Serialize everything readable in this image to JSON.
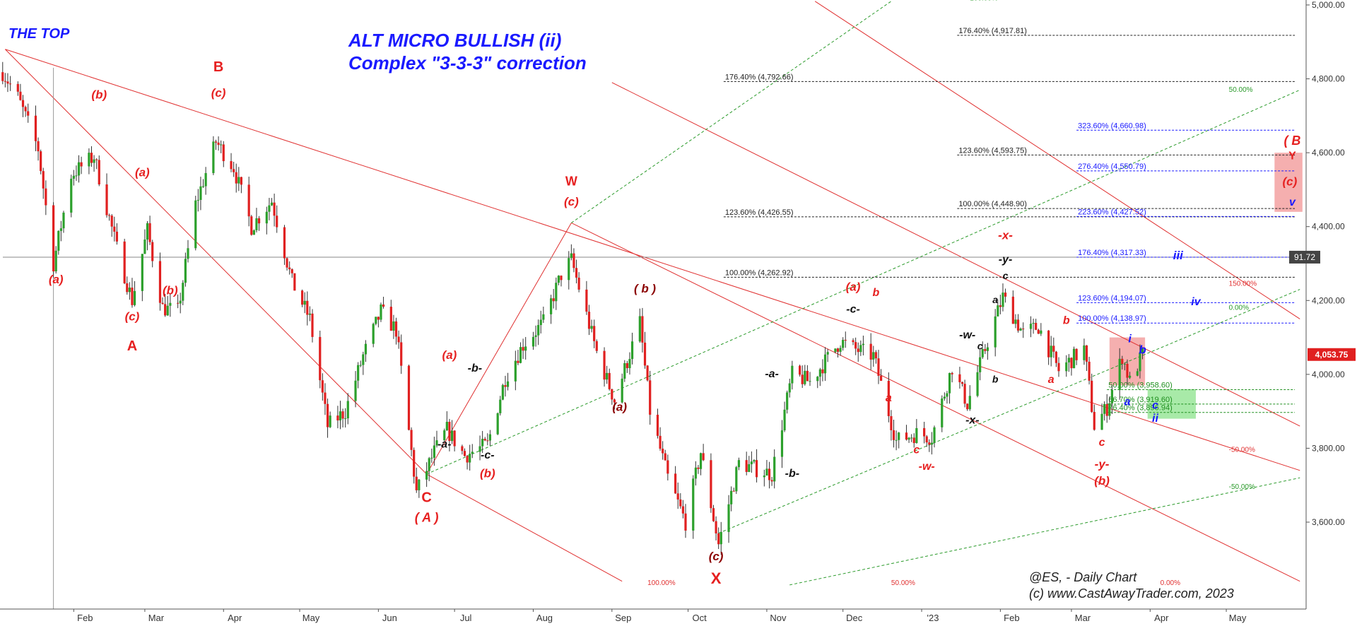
{
  "header": {
    "the_top": "THE TOP",
    "title_line1": "ALT MICRO BULLISH (ii)",
    "title_line2": "Complex \"3-3-3\" correction"
  },
  "watermark": {
    "line1": "@ES, - Daily Chart",
    "line2": "(c) www.CastAwayTrader.com, 2023"
  },
  "colors": {
    "up": "#2ca02c",
    "down": "#e02020",
    "wave_red": "#e62020",
    "wave_dark": "#8b0000",
    "wave_black": "#111111",
    "wave_blue": "#1a1aff",
    "channel_red": "#e03030",
    "channel_green": "#2a9a2a",
    "fib_black": "#222222",
    "fib_blue": "#1a1aff",
    "fib_green": "#1f8f1f",
    "price_tag_bg": "#e02020",
    "cross_tag_bg": "#444444"
  },
  "chart_data": {
    "type": "candlestick",
    "instrument": "@ES",
    "timeframe": "Daily Chart",
    "ylim": [
      3420,
      5010
    ],
    "y_ticks": [
      3600,
      3800,
      4000,
      4200,
      4400,
      4600,
      4800,
      5000
    ],
    "y_tick_labels": [
      "3,600.00",
      "3,800.00",
      "4,000.00",
      "4,200.00",
      "4,400.00",
      "4,600.00",
      "4,800.00",
      "5,000.00"
    ],
    "x_month_labels": [
      "Feb",
      "Mar",
      "Apr",
      "May",
      "Jun",
      "Jul",
      "Aug",
      "Sep",
      "Oct",
      "Nov",
      "Dec",
      "'23",
      "Feb",
      "Mar",
      "Apr",
      "May"
    ],
    "x_month_starts": [
      "2022-02-01",
      "2022-03-01",
      "2022-04-01",
      "2022-05-01",
      "2022-06-01",
      "2022-07-01",
      "2022-08-01",
      "2022-09-01",
      "2022-10-01",
      "2022-11-01",
      "2022-12-01",
      "2023-01-01",
      "2023-02-01",
      "2023-03-01",
      "2023-04-01",
      "2023-05-01"
    ],
    "price_path": [
      [
        "2022-01-04",
        4818
      ],
      [
        "2022-01-10",
        4750
      ],
      [
        "2022-01-18",
        4610
      ],
      [
        "2022-01-24",
        4300
      ],
      [
        "2022-01-31",
        4540
      ],
      [
        "2022-02-09",
        4590
      ],
      [
        "2022-02-18",
        4340
      ],
      [
        "2022-02-24",
        4200
      ],
      [
        "2022-03-02",
        4390
      ],
      [
        "2022-03-08",
        4180
      ],
      [
        "2022-03-14",
        4170
      ],
      [
        "2022-03-21",
        4460
      ],
      [
        "2022-03-29",
        4630
      ],
      [
        "2022-04-05",
        4560
      ],
      [
        "2022-04-12",
        4400
      ],
      [
        "2022-04-20",
        4470
      ],
      [
        "2022-04-28",
        4250
      ],
      [
        "2022-05-05",
        4150
      ],
      [
        "2022-05-12",
        3860
      ],
      [
        "2022-05-19",
        3900
      ],
      [
        "2022-05-26",
        4050
      ],
      [
        "2022-06-02",
        4170
      ],
      [
        "2022-06-08",
        4120
      ],
      [
        "2022-06-16",
        3680
      ],
      [
        "2022-06-23",
        3790
      ],
      [
        "2022-06-28",
        3850
      ],
      [
        "2022-07-05",
        3780
      ],
      [
        "2022-07-14",
        3810
      ],
      [
        "2022-07-21",
        3990
      ],
      [
        "2022-07-28",
        4080
      ],
      [
        "2022-08-05",
        4140
      ],
      [
        "2022-08-12",
        4270
      ],
      [
        "2022-08-16",
        4310
      ],
      [
        "2022-08-26",
        4060
      ],
      [
        "2022-09-02",
        3930
      ],
      [
        "2022-09-12",
        4140
      ],
      [
        "2022-09-16",
        3900
      ],
      [
        "2022-09-23",
        3720
      ],
      [
        "2022-09-30",
        3600
      ],
      [
        "2022-10-06",
        3790
      ],
      [
        "2022-10-13",
        3540
      ],
      [
        "2022-10-21",
        3760
      ],
      [
        "2022-11-03",
        3730
      ],
      [
        "2022-11-11",
        4000
      ],
      [
        "2022-11-18",
        3980
      ],
      [
        "2022-11-30",
        4090
      ],
      [
        "2022-12-05",
        4070
      ],
      [
        "2022-12-13",
        4050
      ],
      [
        "2022-12-22",
        3820
      ],
      [
        "2022-12-30",
        3840
      ],
      [
        "2023-01-05",
        3830
      ],
      [
        "2023-01-13",
        4020
      ],
      [
        "2023-01-19",
        3920
      ],
      [
        "2023-01-27",
        4090
      ],
      [
        "2023-02-02",
        4210
      ],
      [
        "2023-02-10",
        4110
      ],
      [
        "2023-02-16",
        4130
      ],
      [
        "2023-02-24",
        4010
      ],
      [
        "2023-03-06",
        4070
      ],
      [
        "2023-03-10",
        3860
      ],
      [
        "2023-03-15",
        3910
      ],
      [
        "2023-03-21",
        4050
      ],
      [
        "2023-03-24",
        3980
      ],
      [
        "2023-03-29",
        4054
      ]
    ],
    "last_price": 4053.75,
    "last_price_label": "4,053.75",
    "cross_value": 4317.33,
    "cross_label": "91.72",
    "fib_levels": [
      {
        "label": "176.40% (4,917.81)",
        "value": 4917.81,
        "group": "black",
        "from": "2023-01-15",
        "to": "2023-05-28"
      },
      {
        "label": "176.40% (4,792.66)",
        "value": 4792.66,
        "group": "black",
        "from": "2022-10-15",
        "to": "2023-05-28"
      },
      {
        "label": "123.60% (4,593.75)",
        "value": 4593.75,
        "group": "black",
        "from": "2023-01-15",
        "to": "2023-05-28"
      },
      {
        "label": "100.00% (4,448.90)",
        "value": 4448.9,
        "group": "black",
        "from": "2023-01-15",
        "to": "2023-05-28"
      },
      {
        "label": "123.60% (4,426.55)",
        "value": 4426.55,
        "group": "black",
        "from": "2022-10-15",
        "to": "2023-05-28"
      },
      {
        "label": "100.00% (4,262.92)",
        "value": 4262.92,
        "group": "black",
        "from": "2022-10-15",
        "to": "2023-05-28"
      },
      {
        "label": "323.60% (4,660.98)",
        "value": 4660.98,
        "group": "blue",
        "from": "2023-03-03",
        "to": "2023-05-28"
      },
      {
        "label": "276.40% (4,550.79)",
        "value": 4550.79,
        "group": "blue",
        "from": "2023-03-03",
        "to": "2023-05-28"
      },
      {
        "label": "223.60% (4,427.52)",
        "value": 4427.52,
        "group": "blue",
        "from": "2023-03-03",
        "to": "2023-05-28"
      },
      {
        "label": "176.40% (4,317.33)",
        "value": 4317.33,
        "group": "blue",
        "from": "2023-03-03",
        "to": "2023-05-28"
      },
      {
        "label": "123.60% (4,194.07)",
        "value": 4194.07,
        "group": "blue",
        "from": "2023-03-03",
        "to": "2023-05-28"
      },
      {
        "label": "100.00% (4,138.97)",
        "value": 4138.97,
        "group": "blue",
        "from": "2023-03-03",
        "to": "2023-05-28"
      },
      {
        "label": "50.00% (3,958.60)",
        "value": 3958.6,
        "group": "green",
        "from": "2023-03-15",
        "to": "2023-05-28"
      },
      {
        "label": "66.70% (3,919.60)",
        "value": 3919.6,
        "group": "green",
        "from": "2023-03-15",
        "to": "2023-05-28"
      },
      {
        "label": "76.40% (3,896.94)",
        "value": 3896.94,
        "group": "green",
        "from": "2023-03-15",
        "to": "2023-05-28"
      }
    ],
    "channels": [
      {
        "color": "red",
        "x1": "2022-01-05",
        "y1": 4880,
        "x2": "2023-05-30",
        "y2": 3740
      },
      {
        "color": "red",
        "x1": "2022-01-05",
        "y1": 4880,
        "x2": "2022-06-20",
        "y2": 3730
      },
      {
        "color": "red",
        "x1": "2022-06-20",
        "y1": 3730,
        "x2": "2022-09-05",
        "y2": 3440
      },
      {
        "color": "red",
        "x1": "2022-08-16",
        "y1": 4410,
        "x2": "2023-05-30",
        "y2": 3440
      },
      {
        "color": "red",
        "x1": "2022-09-01",
        "y1": 4790,
        "x2": "2023-05-30",
        "y2": 3860
      },
      {
        "color": "red",
        "x1": "2022-11-20",
        "y1": 5010,
        "x2": "2023-05-30",
        "y2": 4150
      },
      {
        "color": "red",
        "x1": "2022-06-20",
        "y1": 3730,
        "x2": "2022-08-16",
        "y2": 4410
      },
      {
        "color": "green",
        "x1": "2022-06-20",
        "y1": 3730,
        "x2": "2023-05-30",
        "y2": 4770
      },
      {
        "color": "green",
        "x1": "2022-08-16",
        "y1": 4410,
        "x2": "2022-12-20",
        "y2": 5010
      },
      {
        "color": "green",
        "x1": "2022-10-13",
        "y1": 3570,
        "x2": "2023-05-30",
        "y2": 4230
      },
      {
        "color": "green",
        "x1": "2022-11-10",
        "y1": 3430,
        "x2": "2023-05-30",
        "y2": 3720
      }
    ],
    "channel_labels": [
      {
        "text": "100.00%",
        "x": "2022-09-15",
        "y": 3430,
        "color": "red"
      },
      {
        "text": "50.00%",
        "x": "2022-12-20",
        "y": 3430,
        "color": "red"
      },
      {
        "text": "0.00%",
        "x": "2023-04-05",
        "y": 3430,
        "color": "red"
      },
      {
        "text": "150.00%",
        "x": "2023-05-02",
        "y": 4240,
        "color": "red"
      },
      {
        "text": "-50.00%",
        "x": "2023-05-02",
        "y": 3790,
        "color": "red"
      },
      {
        "text": "100.00%",
        "x": "2023-01-20",
        "y": 5012,
        "color": "green"
      },
      {
        "text": "50.00%",
        "x": "2023-05-02",
        "y": 4765,
        "color": "green"
      },
      {
        "text": "0.00%",
        "x": "2023-05-02",
        "y": 4175,
        "color": "green"
      },
      {
        "text": "-50.00%",
        "x": "2023-05-02",
        "y": 3690,
        "color": "green"
      }
    ],
    "boxes": [
      {
        "x1": "2023-03-16",
        "x2": "2023-03-30",
        "y1": 3970,
        "y2": 4100,
        "color": "#f4a6a6"
      },
      {
        "x1": "2023-03-31",
        "x2": "2023-04-19",
        "y1": 3880,
        "y2": 3960,
        "color": "#9ee89e"
      },
      {
        "x1": "2023-05-20",
        "x2": "2023-05-31",
        "y1": 4440,
        "y2": 4600,
        "color": "#f4a6a6"
      }
    ],
    "wave_labels": [
      {
        "text": "(a)",
        "x": "2022-01-25",
        "y": 4255,
        "color": "red",
        "size": 17
      },
      {
        "text": "(b)",
        "x": "2022-02-11",
        "y": 4755,
        "color": "red",
        "size": 17
      },
      {
        "text": "(a)",
        "x": "2022-02-28",
        "y": 4545,
        "color": "red",
        "size": 17
      },
      {
        "text": "(c)",
        "x": "2022-02-24",
        "y": 4155,
        "color": "red",
        "size": 17
      },
      {
        "text": "(b)",
        "x": "2022-03-11",
        "y": 4225,
        "color": "red",
        "size": 17
      },
      {
        "text": "A",
        "x": "2022-02-24",
        "y": 4075,
        "color": "red",
        "size": 20
      },
      {
        "text": "B",
        "x": "2022-03-30",
        "y": 4830,
        "color": "red",
        "size": 20
      },
      {
        "text": "(c)",
        "x": "2022-03-30",
        "y": 4760,
        "color": "red",
        "size": 17
      },
      {
        "text": "(a)",
        "x": "2022-06-29",
        "y": 4050,
        "color": "red",
        "size": 17
      },
      {
        "text": "-b-",
        "x": "2022-07-09",
        "y": 4015,
        "color": "black",
        "size": 16
      },
      {
        "text": "-a-",
        "x": "2022-06-27",
        "y": 3810,
        "color": "black",
        "size": 16
      },
      {
        "text": "-c-",
        "x": "2022-07-14",
        "y": 3780,
        "color": "black",
        "size": 16
      },
      {
        "text": "(b)",
        "x": "2022-07-14",
        "y": 3730,
        "color": "red",
        "size": 17
      },
      {
        "text": "C",
        "x": "2022-06-20",
        "y": 3665,
        "color": "red",
        "size": 20
      },
      {
        "text": "( A )",
        "x": "2022-06-20",
        "y": 3610,
        "color": "red",
        "size": 18
      },
      {
        "text": "W",
        "x": "2022-08-16",
        "y": 4520,
        "color": "red",
        "size": 18
      },
      {
        "text": "(c)",
        "x": "2022-08-16",
        "y": 4465,
        "color": "red",
        "size": 17
      },
      {
        "text": "( b )",
        "x": "2022-09-14",
        "y": 4230,
        "color": "darkred",
        "size": 17
      },
      {
        "text": "(a)",
        "x": "2022-09-04",
        "y": 3910,
        "color": "darkred",
        "size": 17
      },
      {
        "text": "(c)",
        "x": "2022-10-12",
        "y": 3505,
        "color": "darkred",
        "size": 17
      },
      {
        "text": "X",
        "x": "2022-10-12",
        "y": 3445,
        "color": "red",
        "size": 22
      },
      {
        "text": "-a-",
        "x": "2022-11-03",
        "y": 4000,
        "color": "black",
        "size": 16
      },
      {
        "text": "-b-",
        "x": "2022-11-11",
        "y": 3730,
        "color": "black",
        "size": 16
      },
      {
        "text": "(a)",
        "x": "2022-12-05",
        "y": 4235,
        "color": "red",
        "size": 17
      },
      {
        "text": "b",
        "x": "2022-12-14",
        "y": 4220,
        "color": "red",
        "size": 16
      },
      {
        "text": "-c-",
        "x": "2022-12-05",
        "y": 4175,
        "color": "black",
        "size": 16
      },
      {
        "text": "a",
        "x": "2022-12-19",
        "y": 3935,
        "color": "red",
        "size": 16
      },
      {
        "text": "c",
        "x": "2022-12-30",
        "y": 3795,
        "color": "red",
        "size": 16
      },
      {
        "text": "-w-",
        "x": "2023-01-03",
        "y": 3750,
        "color": "red",
        "size": 16
      },
      {
        "text": "-w-",
        "x": "2023-01-19",
        "y": 4105,
        "color": "black",
        "size": 16
      },
      {
        "text": "c",
        "x": "2023-01-24",
        "y": 4075,
        "color": "black",
        "size": 14
      },
      {
        "text": "-x-",
        "x": "2023-01-21",
        "y": 3875,
        "color": "black",
        "size": 16
      },
      {
        "text": "a",
        "x": "2023-01-30",
        "y": 4200,
        "color": "black",
        "size": 14
      },
      {
        "text": "b",
        "x": "2023-01-30",
        "y": 3985,
        "color": "black",
        "size": 14
      },
      {
        "text": "-x-",
        "x": "2023-02-03",
        "y": 4375,
        "color": "red",
        "size": 17
      },
      {
        "text": "-y-",
        "x": "2023-02-03",
        "y": 4310,
        "color": "black",
        "size": 16
      },
      {
        "text": "c",
        "x": "2023-02-03",
        "y": 4265,
        "color": "black",
        "size": 14
      },
      {
        "text": "b",
        "x": "2023-02-27",
        "y": 4145,
        "color": "red",
        "size": 16
      },
      {
        "text": "a",
        "x": "2023-02-21",
        "y": 3985,
        "color": "red",
        "size": 16
      },
      {
        "text": "c",
        "x": "2023-03-13",
        "y": 3815,
        "color": "red",
        "size": 16
      },
      {
        "text": "-y-",
        "x": "2023-03-13",
        "y": 3755,
        "color": "red",
        "size": 17
      },
      {
        "text": "(b)",
        "x": "2023-03-13",
        "y": 3710,
        "color": "red",
        "size": 17
      },
      {
        "text": "i",
        "x": "2023-03-24",
        "y": 4095,
        "color": "blue",
        "size": 16
      },
      {
        "text": "b",
        "x": "2023-03-29",
        "y": 4065,
        "color": "blue",
        "size": 17
      },
      {
        "text": "a",
        "x": "2023-03-23",
        "y": 3925,
        "color": "blue",
        "size": 16
      },
      {
        "text": "c",
        "x": "2023-04-03",
        "y": 3915,
        "color": "blue",
        "size": 16
      },
      {
        "text": "ii",
        "x": "2023-04-03",
        "y": 3880,
        "color": "blue",
        "size": 16
      },
      {
        "text": "iii",
        "x": "2023-04-12",
        "y": 4320,
        "color": "blue",
        "size": 17
      },
      {
        "text": "iv",
        "x": "2023-04-19",
        "y": 4195,
        "color": "blue",
        "size": 16
      },
      {
        "text": "( B",
        "x": "2023-05-27",
        "y": 4630,
        "color": "red",
        "size": 18
      },
      {
        "text": "Y",
        "x": "2023-05-27",
        "y": 4590,
        "color": "red",
        "size": 16
      },
      {
        "text": "(c)",
        "x": "2023-05-26",
        "y": 4520,
        "color": "red",
        "size": 17
      },
      {
        "text": "v",
        "x": "2023-05-27",
        "y": 4465,
        "color": "blue",
        "size": 16
      }
    ]
  }
}
